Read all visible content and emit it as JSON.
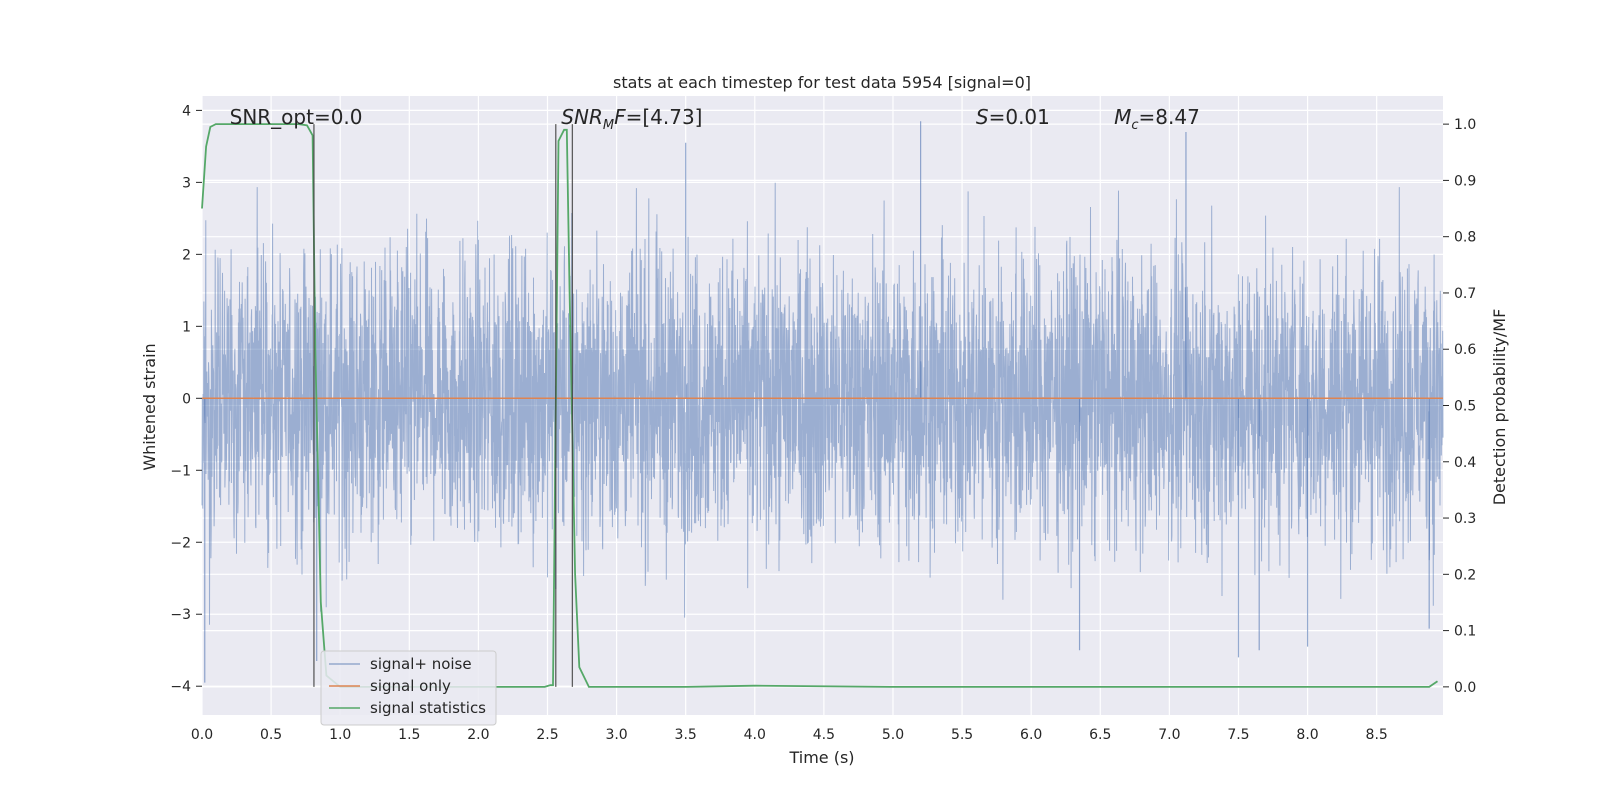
{
  "chart_data": {
    "type": "line",
    "title": "stats at each timestep for test data 5954 [signal=0]",
    "xlabel": "Time (s)",
    "ylabel": "Whitened strain",
    "y2label": "Detection probability/MF",
    "xlim": [
      0.0,
      8.98
    ],
    "ylim": [
      -4.4,
      4.2
    ],
    "y2lim": [
      -0.05,
      1.05
    ],
    "xticks": [
      0.0,
      0.5,
      1.0,
      1.5,
      2.0,
      2.5,
      3.0,
      3.5,
      4.0,
      4.5,
      5.0,
      5.5,
      6.0,
      6.5,
      7.0,
      7.5,
      8.0,
      8.5
    ],
    "xtick_labels": [
      "0.0",
      "0.5",
      "1.0",
      "1.5",
      "2.0",
      "2.5",
      "3.0",
      "3.5",
      "4.0",
      "4.5",
      "5.0",
      "5.5",
      "6.0",
      "6.5",
      "7.0",
      "7.5",
      "8.0",
      "8.5"
    ],
    "yticks": [
      4,
      3,
      2,
      1,
      0,
      -1,
      -2,
      -3,
      -4
    ],
    "ytick_labels": [
      "4",
      "3",
      "2",
      "1",
      "0",
      "−1",
      "−2",
      "−3",
      "−4"
    ],
    "y2ticks": [
      1.0,
      0.9,
      0.8,
      0.7,
      0.6,
      0.5,
      0.4,
      0.3,
      0.2,
      0.1,
      0.0
    ],
    "y2tick_labels": [
      "1.0",
      "0.9",
      "0.8",
      "0.7",
      "0.6",
      "0.5",
      "0.4",
      "0.3",
      "0.2",
      "0.1",
      "0.0"
    ],
    "grid": true,
    "legend": "lower-left",
    "annotations": [
      {
        "html": "SNR_opt=0.0",
        "x": 0.2
      },
      {
        "html": "<tspan font-style=\"italic\">SNR</tspan><tspan font-style=\"italic\" font-size=\"13\" dy=\"5\">M</tspan><tspan font-style=\"italic\" dy=\"-5\">F</tspan>=[4.73]",
        "x": 2.6
      },
      {
        "html": "<tspan font-style=\"italic\">S</tspan>=0.01",
        "x": 5.6
      },
      {
        "html": "<tspan font-style=\"italic\">M</tspan><tspan font-style=\"italic\" font-size=\"13\" dy=\"5\">c</tspan><tspan dy=\"-5\">=8.47</tspan>",
        "x": 6.6
      }
    ],
    "vlines": [
      {
        "x": 0.81,
        "ymin": 0.0,
        "ymax": 1.0
      },
      {
        "x": 2.56,
        "ymin": 0.0,
        "ymax": 1.0
      },
      {
        "x": 2.68,
        "ymin": 0.0,
        "ymax": 1.0
      }
    ],
    "series": [
      {
        "name": "signal+ noise",
        "color": "#4c72b0",
        "axis": "left",
        "kind": "noise",
        "duration": 8.98,
        "sample_step": 0.00195,
        "typical_range": [
          -3.9,
          3.9
        ],
        "peak_values": [
          {
            "x": 0.02,
            "y": -3.95
          },
          {
            "x": 0.83,
            "y": -3.65
          },
          {
            "x": 2.56,
            "y": -2.65
          },
          {
            "x": 3.5,
            "y": 3.55
          },
          {
            "x": 5.2,
            "y": 3.85
          },
          {
            "x": 6.35,
            "y": -3.5
          },
          {
            "x": 7.12,
            "y": 3.7
          },
          {
            "x": 7.5,
            "y": -3.6
          },
          {
            "x": 7.65,
            "y": -3.5
          },
          {
            "x": 8.0,
            "y": -3.45
          },
          {
            "x": 8.88,
            "y": -3.2
          }
        ]
      },
      {
        "name": "signal only",
        "color": "#dd8452",
        "axis": "left",
        "x": [
          0.0,
          8.98
        ],
        "y": [
          0.0,
          0.0
        ]
      },
      {
        "name": "signal statistics",
        "color": "#55a868",
        "axis": "right",
        "x": [
          0.0,
          0.03,
          0.06,
          0.1,
          0.2,
          0.5,
          0.7,
          0.76,
          0.8,
          0.82,
          0.86,
          0.9,
          1.0,
          1.5,
          2.0,
          2.48,
          2.52,
          2.54,
          2.56,
          2.58,
          2.6,
          2.62,
          2.64,
          2.66,
          2.7,
          2.73,
          2.8,
          3.0,
          3.5,
          4.0,
          5.0,
          6.0,
          7.0,
          8.0,
          8.5,
          8.88,
          8.94
        ],
        "y": [
          0.85,
          0.96,
          0.995,
          1.0,
          1.0,
          1.0,
          1.0,
          0.998,
          0.98,
          0.6,
          0.15,
          0.02,
          0.0,
          0.0,
          0.0,
          0.0,
          0.003,
          0.003,
          0.5,
          0.97,
          0.98,
          0.99,
          0.99,
          0.7,
          0.2,
          0.035,
          0.0,
          0.0,
          0.0,
          0.002,
          0.0,
          0.0,
          0.0,
          0.0,
          0.0,
          0.0,
          0.01
        ]
      }
    ]
  }
}
